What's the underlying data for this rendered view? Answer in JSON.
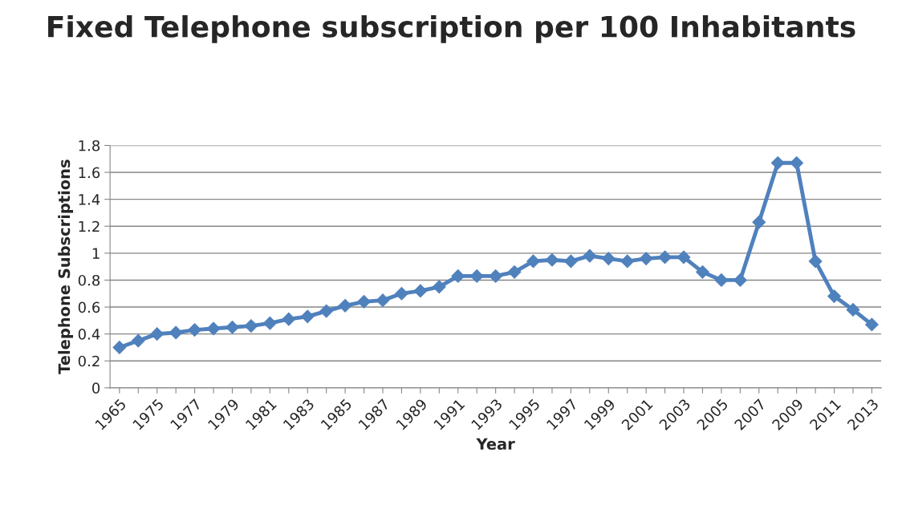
{
  "chart_data": {
    "type": "line",
    "title": "Fixed Telephone subscription per 100 Inhabitants",
    "xlabel": "Year",
    "ylabel": "Telephone Subscriptions",
    "categories": [
      "1965",
      null,
      "1975",
      null,
      "1977",
      null,
      "1979",
      null,
      "1981",
      null,
      "1983",
      null,
      "1985",
      null,
      "1987",
      null,
      "1989",
      null,
      "1991",
      null,
      "1993",
      null,
      "1995",
      null,
      "1997",
      null,
      "1999",
      null,
      "2001",
      null,
      "2003",
      null,
      "2005",
      null,
      "2007",
      null,
      "2009",
      null,
      "2011",
      null,
      "2013"
    ],
    "series": [
      {
        "color": "#4f81bd",
        "values": [
          0.3,
          0.35,
          0.4,
          0.41,
          0.43,
          0.44,
          0.45,
          0.46,
          0.48,
          0.51,
          0.53,
          0.57,
          0.61,
          0.64,
          0.65,
          0.7,
          0.72,
          0.75,
          0.83,
          0.83,
          0.83,
          0.86,
          0.94,
          0.95,
          0.94,
          0.98,
          0.96,
          0.94,
          0.96,
          0.97,
          0.97,
          0.86,
          0.8,
          0.8,
          1.23,
          1.67,
          1.67,
          0.94,
          0.68,
          0.58,
          0.47
        ]
      }
    ],
    "ylim": [
      0,
      1.8
    ],
    "yticks": [
      0,
      {
        "value": 0.2,
        "label": "0.2"
      },
      {
        "value": 0.4,
        "label": "0.4"
      },
      {
        "value": 0.6,
        "label": "0.6"
      },
      {
        "value": 0.8,
        "label": "0.8"
      },
      1,
      {
        "value": 1.2,
        "label": "1.2"
      },
      {
        "value": 1.4,
        "label": "1.4"
      },
      {
        "value": 1.6,
        "label": "1.6"
      },
      {
        "value": 1.8,
        "label": "1.8"
      }
    ],
    "grid": "y",
    "marker": "diamond",
    "line_style": "solid",
    "legend": false
  }
}
